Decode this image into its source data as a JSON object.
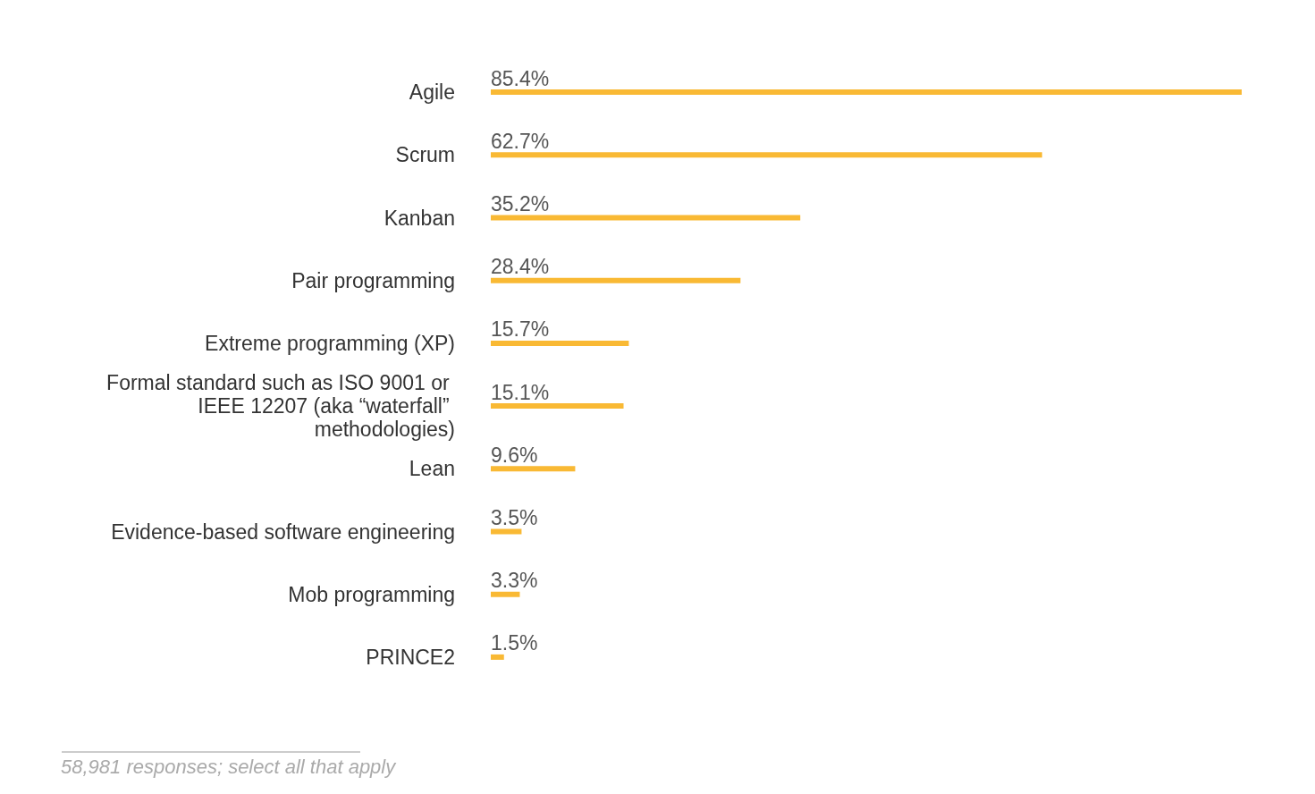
{
  "chart_data": {
    "type": "bar",
    "orientation": "horizontal",
    "categories": [
      "Agile",
      "Scrum",
      "Kanban",
      "Pair programming",
      "Extreme programming (XP)",
      "Formal standard such as ISO 9001 or IEEE 12207 (aka “waterfall” methodologies)",
      "Lean",
      "Evidence-based software engineering",
      "Mob programming",
      "PRINCE2"
    ],
    "values": [
      85.4,
      62.7,
      35.2,
      28.4,
      15.7,
      15.1,
      9.6,
      3.5,
      3.3,
      1.5
    ],
    "color": "#f9b934",
    "value_labels": [
      "85.4%",
      "62.7%",
      "35.2%",
      "28.4%",
      "15.7%",
      "15.1%",
      "9.6%",
      "3.5%",
      "3.3%",
      "1.5%"
    ],
    "annotations": [
      "58,981 responses; select all that apply"
    ],
    "grid": false
  }
}
